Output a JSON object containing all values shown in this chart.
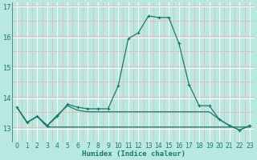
{
  "x": [
    0,
    1,
    2,
    3,
    4,
    5,
    6,
    7,
    8,
    9,
    10,
    11,
    12,
    13,
    14,
    15,
    16,
    17,
    18,
    19,
    20,
    21,
    22,
    23
  ],
  "line1": [
    13.7,
    13.2,
    13.4,
    13.1,
    13.4,
    13.8,
    13.7,
    13.65,
    13.65,
    13.65,
    14.4,
    15.95,
    16.15,
    16.7,
    16.65,
    16.65,
    15.8,
    14.45,
    13.75,
    13.75,
    13.3,
    13.1,
    12.95,
    13.1
  ],
  "line2": [
    13.7,
    13.2,
    13.4,
    13.1,
    13.45,
    13.75,
    13.6,
    13.55,
    13.55,
    13.55,
    13.55,
    13.55,
    13.55,
    13.55,
    13.55,
    13.55,
    13.55,
    13.55,
    13.55,
    13.55,
    13.3,
    13.1,
    12.95,
    13.1
  ],
  "line3": [
    13.7,
    13.2,
    13.4,
    13.05,
    13.05,
    13.05,
    13.05,
    13.05,
    13.05,
    13.05,
    13.05,
    13.05,
    13.05,
    13.05,
    13.05,
    13.05,
    13.05,
    13.05,
    13.05,
    13.05,
    13.05,
    13.05,
    13.05,
    13.05
  ],
  "line_color": "#1a7a6e",
  "bg_color": "#b8e8e0",
  "grid_color_major": "#ffffff",
  "grid_color_minor": "#e8b8b8",
  "xlabel": "Humidex (Indice chaleur)",
  "ylim": [
    12.55,
    17.15
  ],
  "xlim": [
    -0.5,
    23.5
  ],
  "yticks": [
    13,
    14,
    15,
    16,
    17
  ],
  "xticks": [
    0,
    1,
    2,
    3,
    4,
    5,
    6,
    7,
    8,
    9,
    10,
    11,
    12,
    13,
    14,
    15,
    16,
    17,
    18,
    19,
    20,
    21,
    22,
    23
  ]
}
